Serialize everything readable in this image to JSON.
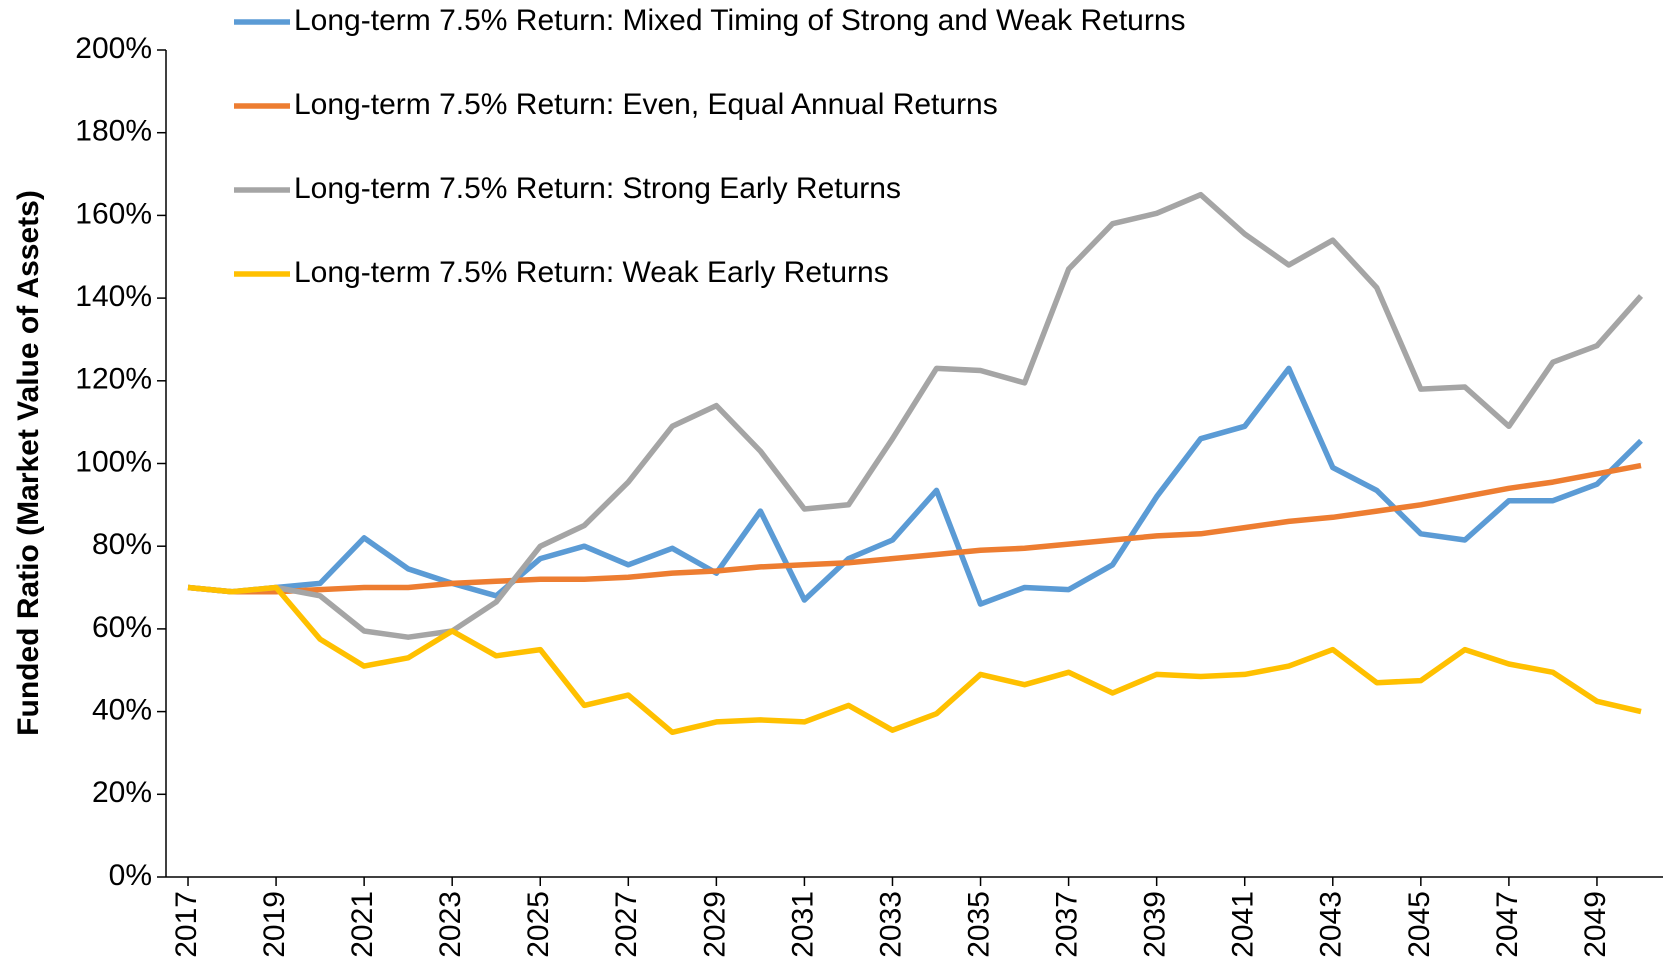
{
  "chart_data": {
    "type": "line",
    "y_label": "Funded Ratio (Market Value of Assets)",
    "x": [
      2017,
      2018,
      2019,
      2020,
      2021,
      2022,
      2023,
      2024,
      2025,
      2026,
      2027,
      2028,
      2029,
      2030,
      2031,
      2032,
      2033,
      2034,
      2035,
      2036,
      2037,
      2038,
      2039,
      2040,
      2041,
      2042,
      2043,
      2044,
      2045,
      2046,
      2047,
      2048,
      2049,
      2050
    ],
    "xlim": [
      2016.5,
      2050.5
    ],
    "xticks": [
      2017,
      2019,
      2021,
      2023,
      2025,
      2027,
      2029,
      2031,
      2033,
      2035,
      2037,
      2039,
      2041,
      2043,
      2045,
      2047,
      2049
    ],
    "ylim": [
      0,
      200
    ],
    "yticks": [
      {
        "value": 0,
        "label": "0%"
      },
      {
        "value": 20,
        "label": "20%"
      },
      {
        "value": 40,
        "label": "40%"
      },
      {
        "value": 60,
        "label": "60%"
      },
      {
        "value": 80,
        "label": "80%"
      },
      {
        "value": 100,
        "label": "100%"
      },
      {
        "value": 120,
        "label": "120%"
      },
      {
        "value": 140,
        "label": "140%"
      },
      {
        "value": 160,
        "label": "160%"
      },
      {
        "value": 180,
        "label": "180%"
      },
      {
        "value": 200,
        "label": "200%"
      }
    ],
    "grid": false,
    "legend": "top-left",
    "series": [
      {
        "name": "Long-term 7.5% Return: Mixed Timing of Strong and Weak Returns",
        "color": "#5b9bd5",
        "values": [
          70,
          69,
          70,
          71,
          82,
          74.5,
          71,
          68,
          77,
          80,
          75.5,
          79.5,
          73.5,
          88.5,
          67,
          77,
          81.5,
          93.5,
          66,
          70,
          69.5,
          75.5,
          92,
          106,
          109,
          123,
          99,
          93.5,
          83,
          81.5,
          91,
          91,
          95,
          105.5
        ]
      },
      {
        "name": "Long-term 7.5% Return: Even, Equal Annual Returns",
        "color": "#ed7d31",
        "values": [
          70,
          69,
          69,
          69.5,
          70,
          70,
          71,
          71.5,
          72,
          72,
          72.5,
          73.5,
          74,
          75,
          75.5,
          76,
          77,
          78,
          79,
          79.5,
          80.5,
          81.5,
          82.5,
          83,
          84.5,
          86,
          87,
          88.5,
          90,
          92,
          94,
          95.5,
          97.5,
          99.5
        ]
      },
      {
        "name": "Long-term 7.5% Return: Strong Early Returns",
        "color": "#a5a5a5",
        "values": [
          70,
          69,
          70,
          68,
          59.5,
          58,
          59.5,
          66.5,
          80,
          85,
          95.5,
          109,
          114,
          103,
          89,
          90,
          106,
          123,
          122.5,
          119.5,
          147,
          158,
          160.5,
          165,
          155.5,
          148,
          154,
          142.5,
          118,
          118.5,
          109,
          124.5,
          128.5,
          140.5
        ]
      },
      {
        "name": "Long-term 7.5% Return: Weak Early Returns",
        "color": "#ffc000",
        "values": [
          70,
          69,
          70,
          57.5,
          51,
          53,
          59.5,
          53.5,
          55,
          41.5,
          44,
          35,
          37.5,
          38,
          37.5,
          41.5,
          35.5,
          39.5,
          49,
          46.5,
          49.5,
          44.5,
          49,
          48.5,
          49,
          51,
          55,
          47,
          47.5,
          55,
          51.5,
          49.5,
          42.5,
          40
        ]
      }
    ]
  }
}
